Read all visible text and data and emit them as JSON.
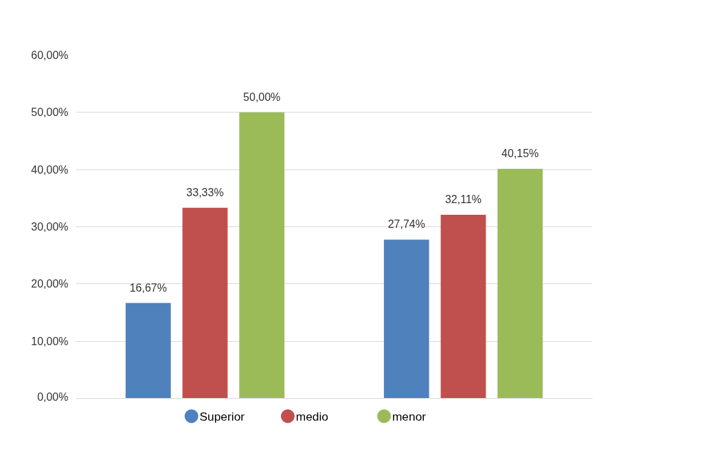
{
  "chart_data": {
    "type": "bar",
    "categories": [
      null,
      null
    ],
    "series": [
      {
        "name": "Superior",
        "color": "#4f81bd",
        "values": [
          16.67,
          27.74
        ],
        "value_labels": [
          "16,67%",
          "27,74%"
        ]
      },
      {
        "name": "medio",
        "color": "#c0504d",
        "values": [
          33.33,
          32.11
        ],
        "value_labels": [
          "33,33%",
          "32,11%"
        ]
      },
      {
        "name": "menor",
        "color": "#9bbb59",
        "values": [
          50.0,
          40.15
        ],
        "value_labels": [
          "50,00%",
          "40,15%"
        ]
      }
    ],
    "ylim": [
      0,
      60
    ],
    "yticks": [
      {
        "value": 0,
        "label": "0,00%"
      },
      {
        "value": 10,
        "label": "10,00%"
      },
      {
        "value": 20,
        "label": "20,00%"
      },
      {
        "value": 30,
        "label": "30,00%"
      },
      {
        "value": 40,
        "label": "40,00%"
      },
      {
        "value": 50,
        "label": "50,00%"
      },
      {
        "value": 60,
        "label": "60,00%"
      }
    ],
    "grid": "y",
    "legend": "bottom"
  }
}
